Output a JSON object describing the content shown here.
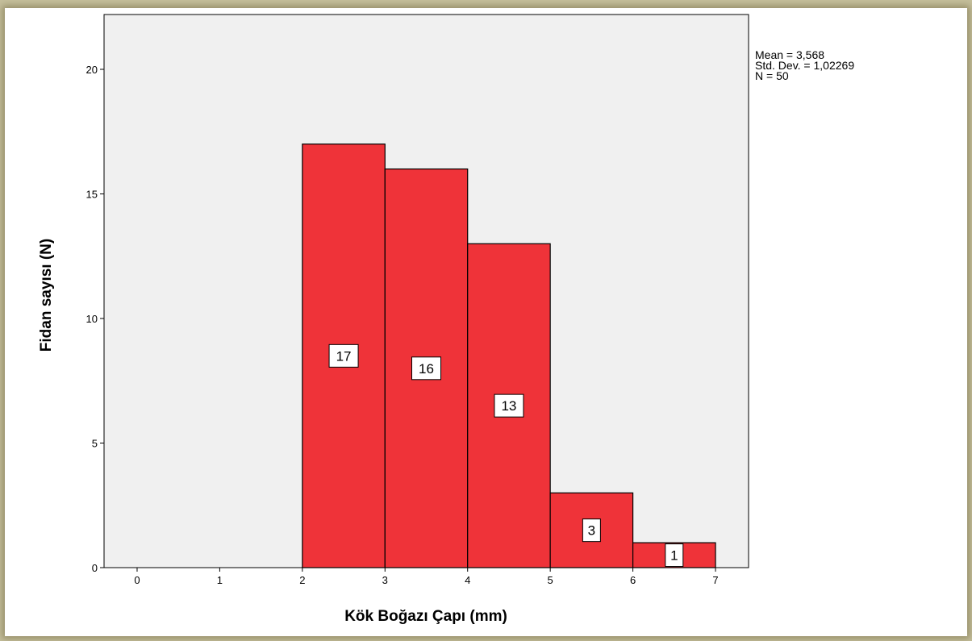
{
  "chart_data": {
    "type": "bar",
    "subtype": "histogram",
    "bins": [
      {
        "x0": 2,
        "x1": 3,
        "value": 17
      },
      {
        "x0": 3,
        "x1": 4,
        "value": 16
      },
      {
        "x0": 4,
        "x1": 5,
        "value": 13
      },
      {
        "x0": 5,
        "x1": 6,
        "value": 3
      },
      {
        "x0": 6,
        "x1": 7,
        "value": 1
      }
    ],
    "data_labels": [
      "17",
      "16",
      "13",
      "3",
      "1"
    ],
    "xlabel": "Kök Boğazı Çapı (mm)",
    "ylabel": "Fidan sayısı (N)",
    "xticks": [
      "0",
      "1",
      "2",
      "3",
      "4",
      "5",
      "6",
      "7"
    ],
    "yticks": [
      "0",
      "5",
      "10",
      "15",
      "20"
    ],
    "xlim": [
      -0.4,
      7.4
    ],
    "ylim": [
      0,
      22.2
    ],
    "grid": false,
    "stats": {
      "mean": "Mean = 3,568",
      "std": "Std. Dev. = 1,02269",
      "n": "N = 50"
    },
    "colors": {
      "bar_fill": "#ef3339",
      "plot_background": "#f0f0f0",
      "page_border": "#c5bf9c"
    }
  }
}
